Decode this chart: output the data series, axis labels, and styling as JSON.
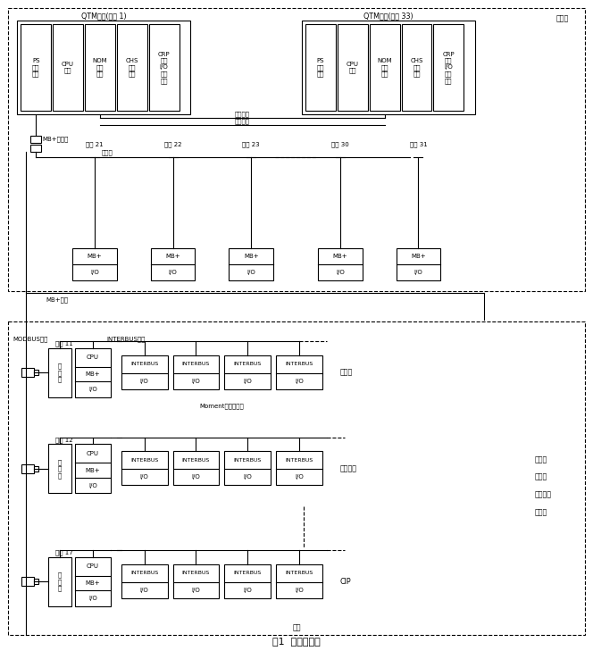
{
  "title": "图1  系统结构图",
  "fig_width": 6.64,
  "fig_height": 7.29,
  "dpi": 100,
  "qtm_main_label": "QTM主机(站号 1)",
  "qtm_backup_label": "QTM备机(站号 33)",
  "qtm_main_modules": [
    "PS\n电源\n模块",
    "CPU\n模块",
    "NOM\n通讯\n模块",
    "CHS\n同步\n模块",
    "CRP\n远程\nI/O\n处理\n模块"
  ],
  "qtm_backup_modules": [
    "PS\n电源\n模块",
    "CPU\n模块",
    "NOM\n通讯\n模块",
    "CHS\n同步\n模块",
    "CRP\n远程\nI/O\n处理\n模块"
  ],
  "fiber_cable_label": "光纤电缆",
  "coax_cable_label": "同轴电缆",
  "twisted_pair_label": "双绞线",
  "mb_plus_bus_label": "MB+总线",
  "mb_plus_splitter_label": "MB+分支器",
  "modbus_bus_label": "MODBUS总线",
  "interbus_bus_label": "INTERBUS总线",
  "moment_label": "Moment分布式模块",
  "upper_zone_label": "主控室",
  "lower_zone_label": "现场",
  "mb_stations": [
    {
      "label": "站号 21",
      "box": "MB+\nI/O"
    },
    {
      "label": "站号 22",
      "box": "MB+\nI/O"
    },
    {
      "label": "站号 23",
      "box": "MB+\nI/O"
    },
    {
      "label": "站号 30",
      "box": "MB+\nI/O"
    },
    {
      "label": "站号 31",
      "box": "MB+\nI/O"
    }
  ],
  "field_stations": [
    {
      "id": "站号 11",
      "touch": "触\n摸\n屏",
      "cpu_box": "CPU\nMB+\nI/O",
      "interbus_boxes": [
        "INTERBUS\nI/O",
        "INTERBUS\nI/O",
        "INTERBUS\nI/O",
        "INTERBUS\nI/O"
      ],
      "right_label": "卸箱机"
    },
    {
      "id": "站号 12",
      "touch": "触\n摸\n屏",
      "cpu_box": "CPU\nMB+\nI/O",
      "interbus_boxes": [
        "INTERBUS\nI/O",
        "INTERBUS\nI/O",
        "INTERBUS\nI/O",
        "INTERBUS\nI/O"
      ],
      "right_label": "输箱系统"
    },
    {
      "id": "站号 17",
      "touch": "触\n摸\n屏",
      "cpu_box": "CPU\nMB+\nI/O",
      "interbus_boxes": [
        "INTERBUS\nI/O",
        "INTERBUS\nI/O",
        "INTERBUS\nI/O",
        "INTERBUS\nI/O"
      ],
      "right_label": "CIP"
    }
  ],
  "mid_labels": [
    "装箱机",
    "洗瓶机",
    "输瓶系统",
    "杀菌机"
  ]
}
